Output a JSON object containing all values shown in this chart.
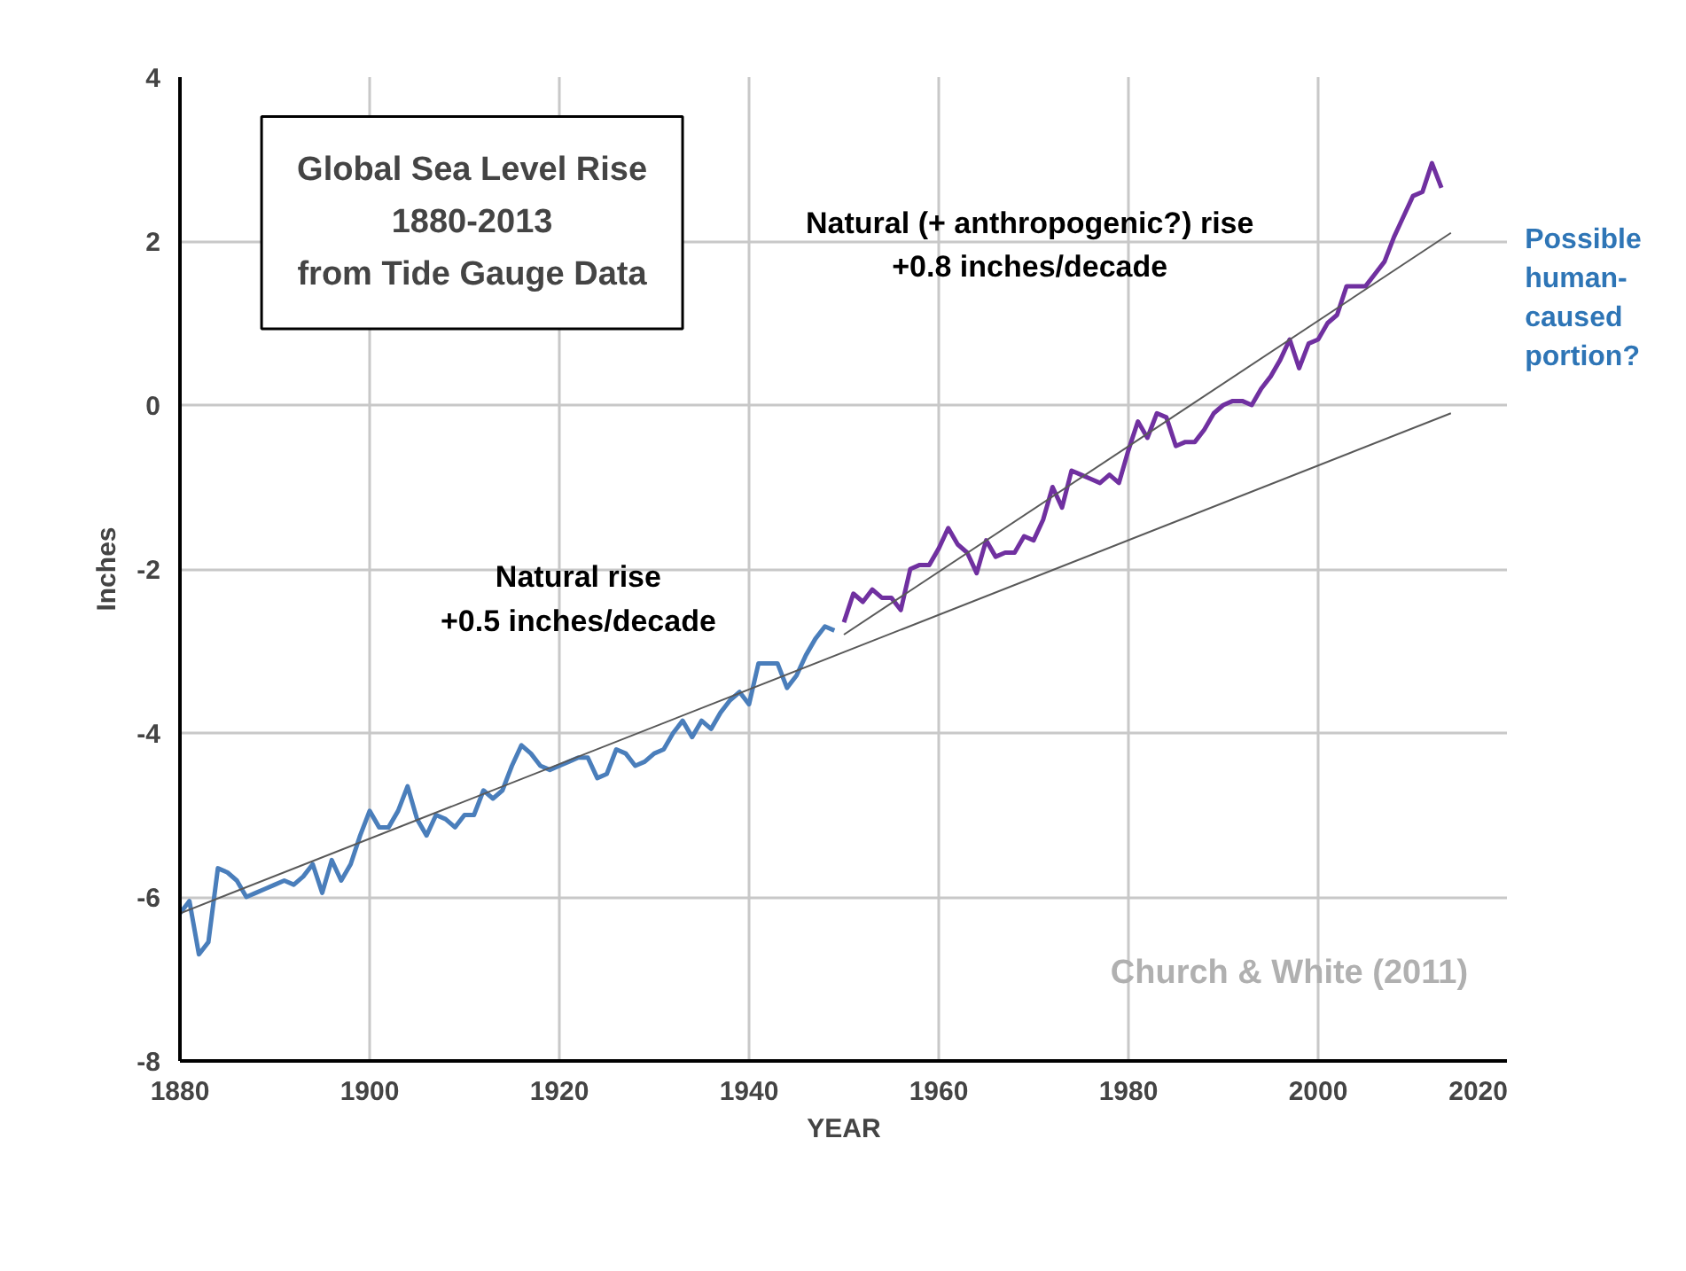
{
  "chart_data": {
    "type": "line",
    "title": "Global Sea Level Rise\n1880-2013\nfrom Tide Gauge Data",
    "xlabel": "YEAR",
    "ylabel": "Inches",
    "xlim": [
      1880,
      2020
    ],
    "xticks": [
      1880,
      1900,
      1920,
      1940,
      1960,
      1980,
      2000,
      2020
    ],
    "ylim": [
      -8,
      4
    ],
    "yticks": [
      -8,
      -6,
      -4,
      -2,
      0,
      2,
      4
    ],
    "grid": true,
    "series": [
      {
        "color": "#4a7ebb",
        "x": [
          1880,
          1881,
          1882,
          1883,
          1884,
          1885,
          1886,
          1887,
          1888,
          1889,
          1890,
          1891,
          1892,
          1893,
          1894,
          1895,
          1896,
          1897,
          1898,
          1899,
          1900,
          1901,
          1902,
          1903,
          1904,
          1905,
          1906,
          1907,
          1908,
          1909,
          1910,
          1911,
          1912,
          1913,
          1914,
          1915,
          1916,
          1917,
          1918,
          1919,
          1920,
          1921,
          1922,
          1923,
          1924,
          1925,
          1926,
          1927,
          1928,
          1929,
          1930,
          1931,
          1932,
          1933,
          1934,
          1935,
          1936,
          1937,
          1938,
          1939,
          1940,
          1941,
          1942,
          1943,
          1944,
          1945,
          1946,
          1947,
          1948,
          1949
        ],
        "values": [
          -6.2,
          -6.05,
          -6.7,
          -6.55,
          -5.65,
          -5.7,
          -5.8,
          -6.0,
          -5.95,
          -5.9,
          -5.85,
          -5.8,
          -5.85,
          -5.75,
          -5.6,
          -5.95,
          -5.55,
          -5.8,
          -5.6,
          -5.25,
          -4.95,
          -5.15,
          -5.15,
          -4.95,
          -4.65,
          -5.05,
          -5.25,
          -5.0,
          -5.05,
          -5.15,
          -5.0,
          -5.0,
          -4.7,
          -4.8,
          -4.7,
          -4.4,
          -4.15,
          -4.25,
          -4.4,
          -4.45,
          -4.4,
          -4.35,
          -4.3,
          -4.3,
          -4.55,
          -4.5,
          -4.2,
          -4.25,
          -4.4,
          -4.35,
          -4.25,
          -4.2,
          -4.0,
          -3.85,
          -4.05,
          -3.85,
          -3.95,
          -3.75,
          -3.6,
          -3.5,
          -3.65,
          -3.15,
          -3.15,
          -3.15,
          -3.45,
          -3.3,
          -3.05,
          -2.85,
          -2.7,
          -2.75
        ]
      },
      {
        "color": "#7030a0",
        "x": [
          1950,
          1951,
          1952,
          1953,
          1954,
          1955,
          1956,
          1957,
          1958,
          1959,
          1960,
          1961,
          1962,
          1963,
          1964,
          1965,
          1966,
          1967,
          1968,
          1969,
          1970,
          1971,
          1972,
          1973,
          1974,
          1975,
          1976,
          1977,
          1978,
          1979,
          1980,
          1981,
          1982,
          1983,
          1984,
          1985,
          1986,
          1987,
          1988,
          1989,
          1990,
          1991,
          1992,
          1993,
          1994,
          1995,
          1996,
          1997,
          1998,
          1999,
          2000,
          2001,
          2002,
          2003,
          2004,
          2005,
          2006,
          2007,
          2008,
          2009,
          2010,
          2011,
          2012,
          2013
        ],
        "values": [
          -2.65,
          -2.3,
          -2.4,
          -2.25,
          -2.35,
          -2.35,
          -2.5,
          -2.0,
          -1.95,
          -1.95,
          -1.75,
          -1.5,
          -1.7,
          -1.8,
          -2.05,
          -1.65,
          -1.85,
          -1.8,
          -1.8,
          -1.6,
          -1.65,
          -1.4,
          -1.0,
          -1.25,
          -0.8,
          -0.85,
          -0.9,
          -0.95,
          -0.85,
          -0.95,
          -0.55,
          -0.2,
          -0.4,
          -0.1,
          -0.15,
          -0.5,
          -0.45,
          -0.45,
          -0.3,
          -0.1,
          0.0,
          0.05,
          0.05,
          0.0,
          0.2,
          0.35,
          0.55,
          0.8,
          0.45,
          0.75,
          0.8,
          1.0,
          1.1,
          1.45,
          1.45,
          1.45,
          1.6,
          1.75,
          2.05,
          2.3,
          2.55,
          2.6,
          2.95,
          2.65
        ]
      },
      {
        "color": "#595959",
        "x": [
          1880,
          2014
        ],
        "values": [
          -6.2,
          -0.1
        ]
      },
      {
        "color": "#595959",
        "x": [
          1950,
          2014
        ],
        "values": [
          -2.8,
          2.1
        ]
      }
    ],
    "annotations": [
      "Natural rise\n+0.5 inches/decade",
      "Natural (+ anthropogenic?) rise\n+0.8 inches/decade",
      "Church & White (2011)",
      "Possible\nhuman-\ncaused\nportion?"
    ]
  }
}
